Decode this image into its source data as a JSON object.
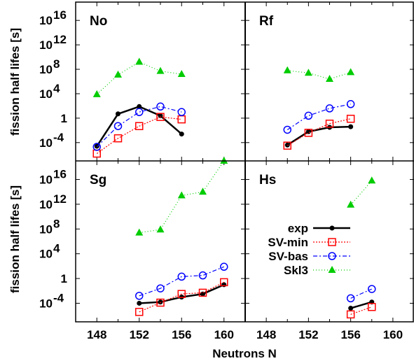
{
  "chart_data": {
    "type": "line",
    "ylabel": "fission half lifes [s]",
    "xlabel": "Neutrons N",
    "x_ticks": [
      148,
      152,
      156,
      160
    ],
    "xlim": [
      146,
      162
    ],
    "y_scale": "log",
    "ylim": [
      1e-07,
      1e+19
    ],
    "y_tick_labels": [
      {
        "exp": -4,
        "label": "10",
        "sup": "-4"
      },
      {
        "exp": 0,
        "label": "1",
        "sup": ""
      },
      {
        "exp": 4,
        "label": "10",
        "sup": "4"
      },
      {
        "exp": 8,
        "label": "10",
        "sup": "8"
      },
      {
        "exp": 12,
        "label": "10",
        "sup": "12"
      },
      {
        "exp": 16,
        "label": "10",
        "sup": "16"
      }
    ],
    "legend_position": "in Hs panel, left-center",
    "series_styles": [
      {
        "name": "exp",
        "color": "#000000",
        "marker": "dot",
        "dash": ""
      },
      {
        "name": "SV-min",
        "color": "#ff0000",
        "marker": "square",
        "dash": "2,2"
      },
      {
        "name": "SV-bas",
        "color": "#0000ff",
        "marker": "circle",
        "dash": "6,3,2,3"
      },
      {
        "name": "Skl3",
        "color": "#00cc00",
        "marker": "triangle",
        "dash": "1,3"
      }
    ],
    "panels": [
      {
        "name": "No",
        "series": [
          {
            "name": "exp",
            "points": [
              [
                148,
                -4.6
              ],
              [
                150,
                0.7
              ],
              [
                152,
                1.9
              ],
              [
                154,
                0.4
              ],
              [
                156,
                -2.6
              ]
            ]
          },
          {
            "name": "SV-min",
            "points": [
              [
                148,
                -5.8
              ],
              [
                150,
                -3.3
              ],
              [
                152,
                -1.3
              ],
              [
                154,
                0.2
              ],
              [
                156,
                -0.2
              ]
            ]
          },
          {
            "name": "SV-bas",
            "points": [
              [
                148,
                -4.7
              ],
              [
                150,
                -1.3
              ],
              [
                152,
                1.0
              ],
              [
                154,
                1.9
              ],
              [
                156,
                1.0
              ]
            ]
          },
          {
            "name": "Skl3",
            "points": [
              [
                148,
                3.9
              ],
              [
                150,
                7.1
              ],
              [
                152,
                9.2
              ],
              [
                154,
                7.7
              ],
              [
                156,
                7.2
              ]
            ]
          }
        ]
      },
      {
        "name": "Rf",
        "series": [
          {
            "name": "exp",
            "points": [
              [
                150,
                -4.4
              ],
              [
                152,
                -2.2
              ],
              [
                154,
                -1.5
              ],
              [
                156,
                -1.4
              ]
            ]
          },
          {
            "name": "SV-min",
            "points": [
              [
                150,
                -4.5
              ],
              [
                152,
                -2.4
              ],
              [
                154,
                -0.9
              ],
              [
                156,
                -0.1
              ]
            ]
          },
          {
            "name": "SV-bas",
            "points": [
              [
                150,
                -1.9
              ],
              [
                152,
                0.4
              ],
              [
                154,
                1.6
              ],
              [
                156,
                2.3
              ]
            ]
          },
          {
            "name": "Skl3",
            "points": [
              [
                150,
                7.8
              ],
              [
                152,
                7.4
              ],
              [
                154,
                6.4
              ],
              [
                156,
                7.5
              ]
            ]
          }
        ]
      },
      {
        "name": "Sg",
        "series": [
          {
            "name": "exp",
            "points": [
              [
                152,
                -4.0
              ],
              [
                154,
                -3.8
              ],
              [
                156,
                -3.0
              ],
              [
                158,
                -2.5
              ],
              [
                160,
                -1.0
              ]
            ]
          },
          {
            "name": "SV-min",
            "points": [
              [
                152,
                -5.4
              ],
              [
                154,
                -3.9
              ],
              [
                156,
                -2.5
              ],
              [
                158,
                -2.3
              ],
              [
                160,
                -0.6
              ]
            ]
          },
          {
            "name": "SV-bas",
            "points": [
              [
                152,
                -2.8
              ],
              [
                154,
                -1.6
              ],
              [
                156,
                0.3
              ],
              [
                158,
                0.5
              ],
              [
                160,
                1.9
              ]
            ]
          },
          {
            "name": "Skl3",
            "points": [
              [
                152,
                7.4
              ],
              [
                154,
                7.9
              ],
              [
                156,
                13.4
              ],
              [
                158,
                14.0
              ],
              [
                160,
                19.0
              ]
            ]
          }
        ]
      },
      {
        "name": "Hs",
        "series": [
          {
            "name": "exp",
            "points": [
              [
                156,
                -4.8
              ],
              [
                158,
                -3.8
              ]
            ]
          },
          {
            "name": "SV-min",
            "points": [
              [
                156,
                -5.8
              ],
              [
                158,
                -4.6
              ]
            ]
          },
          {
            "name": "SV-bas",
            "points": [
              [
                156,
                -3.2
              ],
              [
                158,
                -1.7
              ]
            ]
          },
          {
            "name": "Skl3",
            "points": [
              [
                156,
                11.9
              ],
              [
                158,
                15.8
              ]
            ]
          }
        ]
      }
    ]
  }
}
